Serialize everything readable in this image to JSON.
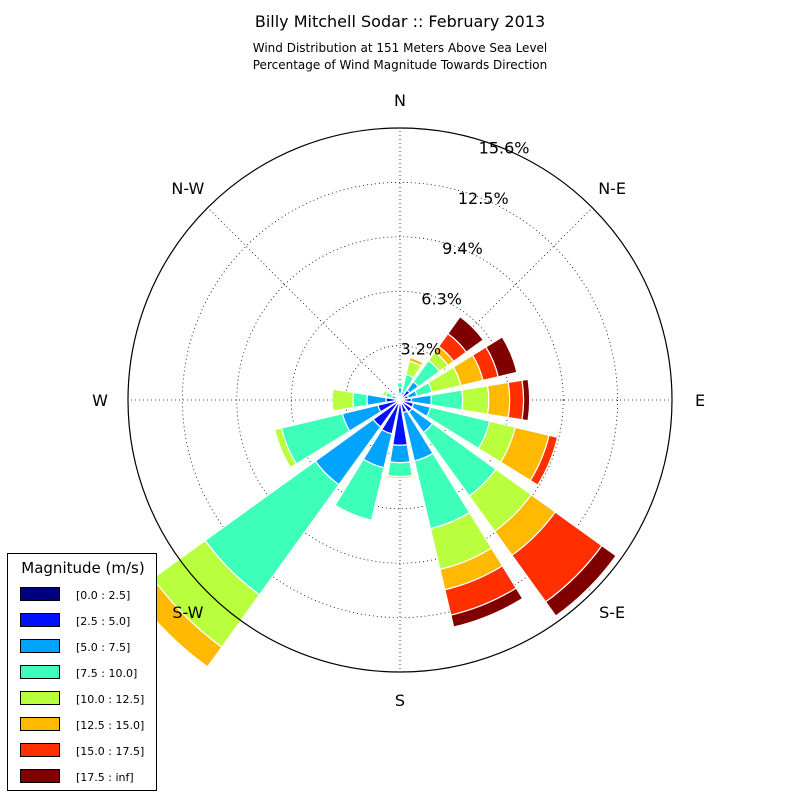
{
  "chart_data": {
    "type": "windrose",
    "title": "Billy Mitchell Sodar :: February 2013",
    "subtitle_lines": [
      "Wind Distribution at 151 Meters Above Sea Level",
      "Percentage of Wind Magnitude Towards Direction"
    ],
    "compass_labels": [
      "N",
      "N-E",
      "E",
      "S-E",
      "S",
      "S-W",
      "W",
      "N-W"
    ],
    "radial_ticks": [
      "3.2%",
      "6.3%",
      "9.4%",
      "12.5%",
      "15.6%"
    ],
    "radial_values": [
      3.125,
      6.25,
      9.375,
      12.5,
      15.625
    ],
    "rmax": 15.625,
    "legend_title": "Magnitude (m/s)",
    "bins": [
      {
        "label": "[0.0 : 2.5]",
        "color": "#000080"
      },
      {
        "label": "[2.5 : 5.0]",
        "color": "#0010ff"
      },
      {
        "label": "[5.0 : 7.5]",
        "color": "#00a4ff"
      },
      {
        "label": "[7.5 : 10.0]",
        "color": "#3dffb9"
      },
      {
        "label": "[10.0 : 12.5]",
        "color": "#b9ff3d"
      },
      {
        "label": "[12.5 : 15.0]",
        "color": "#ffb900"
      },
      {
        "label": "[15.0 : 17.5]",
        "color": "#ff2f00"
      },
      {
        "label": "[17.5 : inf]",
        "color": "#800000"
      }
    ],
    "directions_deg": [
      0,
      22.5,
      45,
      67.5,
      90,
      112.5,
      135,
      157.5,
      180,
      202.5,
      225,
      247.5,
      270,
      292.5,
      315,
      337.5
    ],
    "cumulative": [
      [
        0.05,
        0.35,
        0.7,
        1.0,
        1.05,
        1.05,
        1.05,
        1.05
      ],
      [
        0.1,
        0.3,
        0.5,
        1.5,
        2.3,
        2.5,
        2.5,
        2.5
      ],
      [
        0.15,
        0.7,
        1.3,
        2.8,
        3.4,
        3.8,
        4.7,
        5.9
      ],
      [
        0.1,
        0.5,
        1.0,
        1.9,
        3.6,
        4.9,
        5.8,
        6.9
      ],
      [
        0.1,
        0.65,
        1.8,
        3.6,
        5.1,
        6.3,
        7.1,
        7.45
      ],
      [
        0.1,
        0.8,
        1.8,
        5.3,
        6.8,
        8.8,
        9.3,
        9.3
      ],
      [
        0.1,
        0.85,
        2.3,
        6.8,
        9.3,
        11.0,
        14.3,
        15.3
      ],
      [
        0.1,
        0.75,
        3.6,
        7.6,
        10.0,
        11.2,
        12.7,
        13.4
      ],
      [
        0.1,
        2.6,
        3.6,
        4.4,
        4.4,
        4.5,
        4.5,
        4.5
      ],
      [
        0.1,
        2.0,
        4.0,
        7.1,
        7.1,
        7.1,
        7.1,
        7.1
      ],
      [
        0.1,
        1.9,
        6.0,
        13.8,
        17.5,
        18.9,
        18.9,
        18.9
      ],
      [
        0.1,
        1.3,
        3.4,
        7.0,
        7.4,
        7.4,
        7.4,
        7.4
      ],
      [
        0.1,
        0.8,
        1.9,
        2.7,
        3.9,
        3.9,
        3.9,
        3.9
      ],
      [
        0.05,
        0.2,
        0.5,
        0.85,
        1.05,
        1.05,
        1.05,
        1.05
      ],
      [
        0.02,
        0.08,
        0.18,
        0.28,
        0.3,
        0.3,
        0.3,
        0.3
      ],
      [
        0.05,
        0.15,
        0.25,
        0.35,
        0.4,
        0.4,
        0.4,
        0.4
      ]
    ]
  }
}
